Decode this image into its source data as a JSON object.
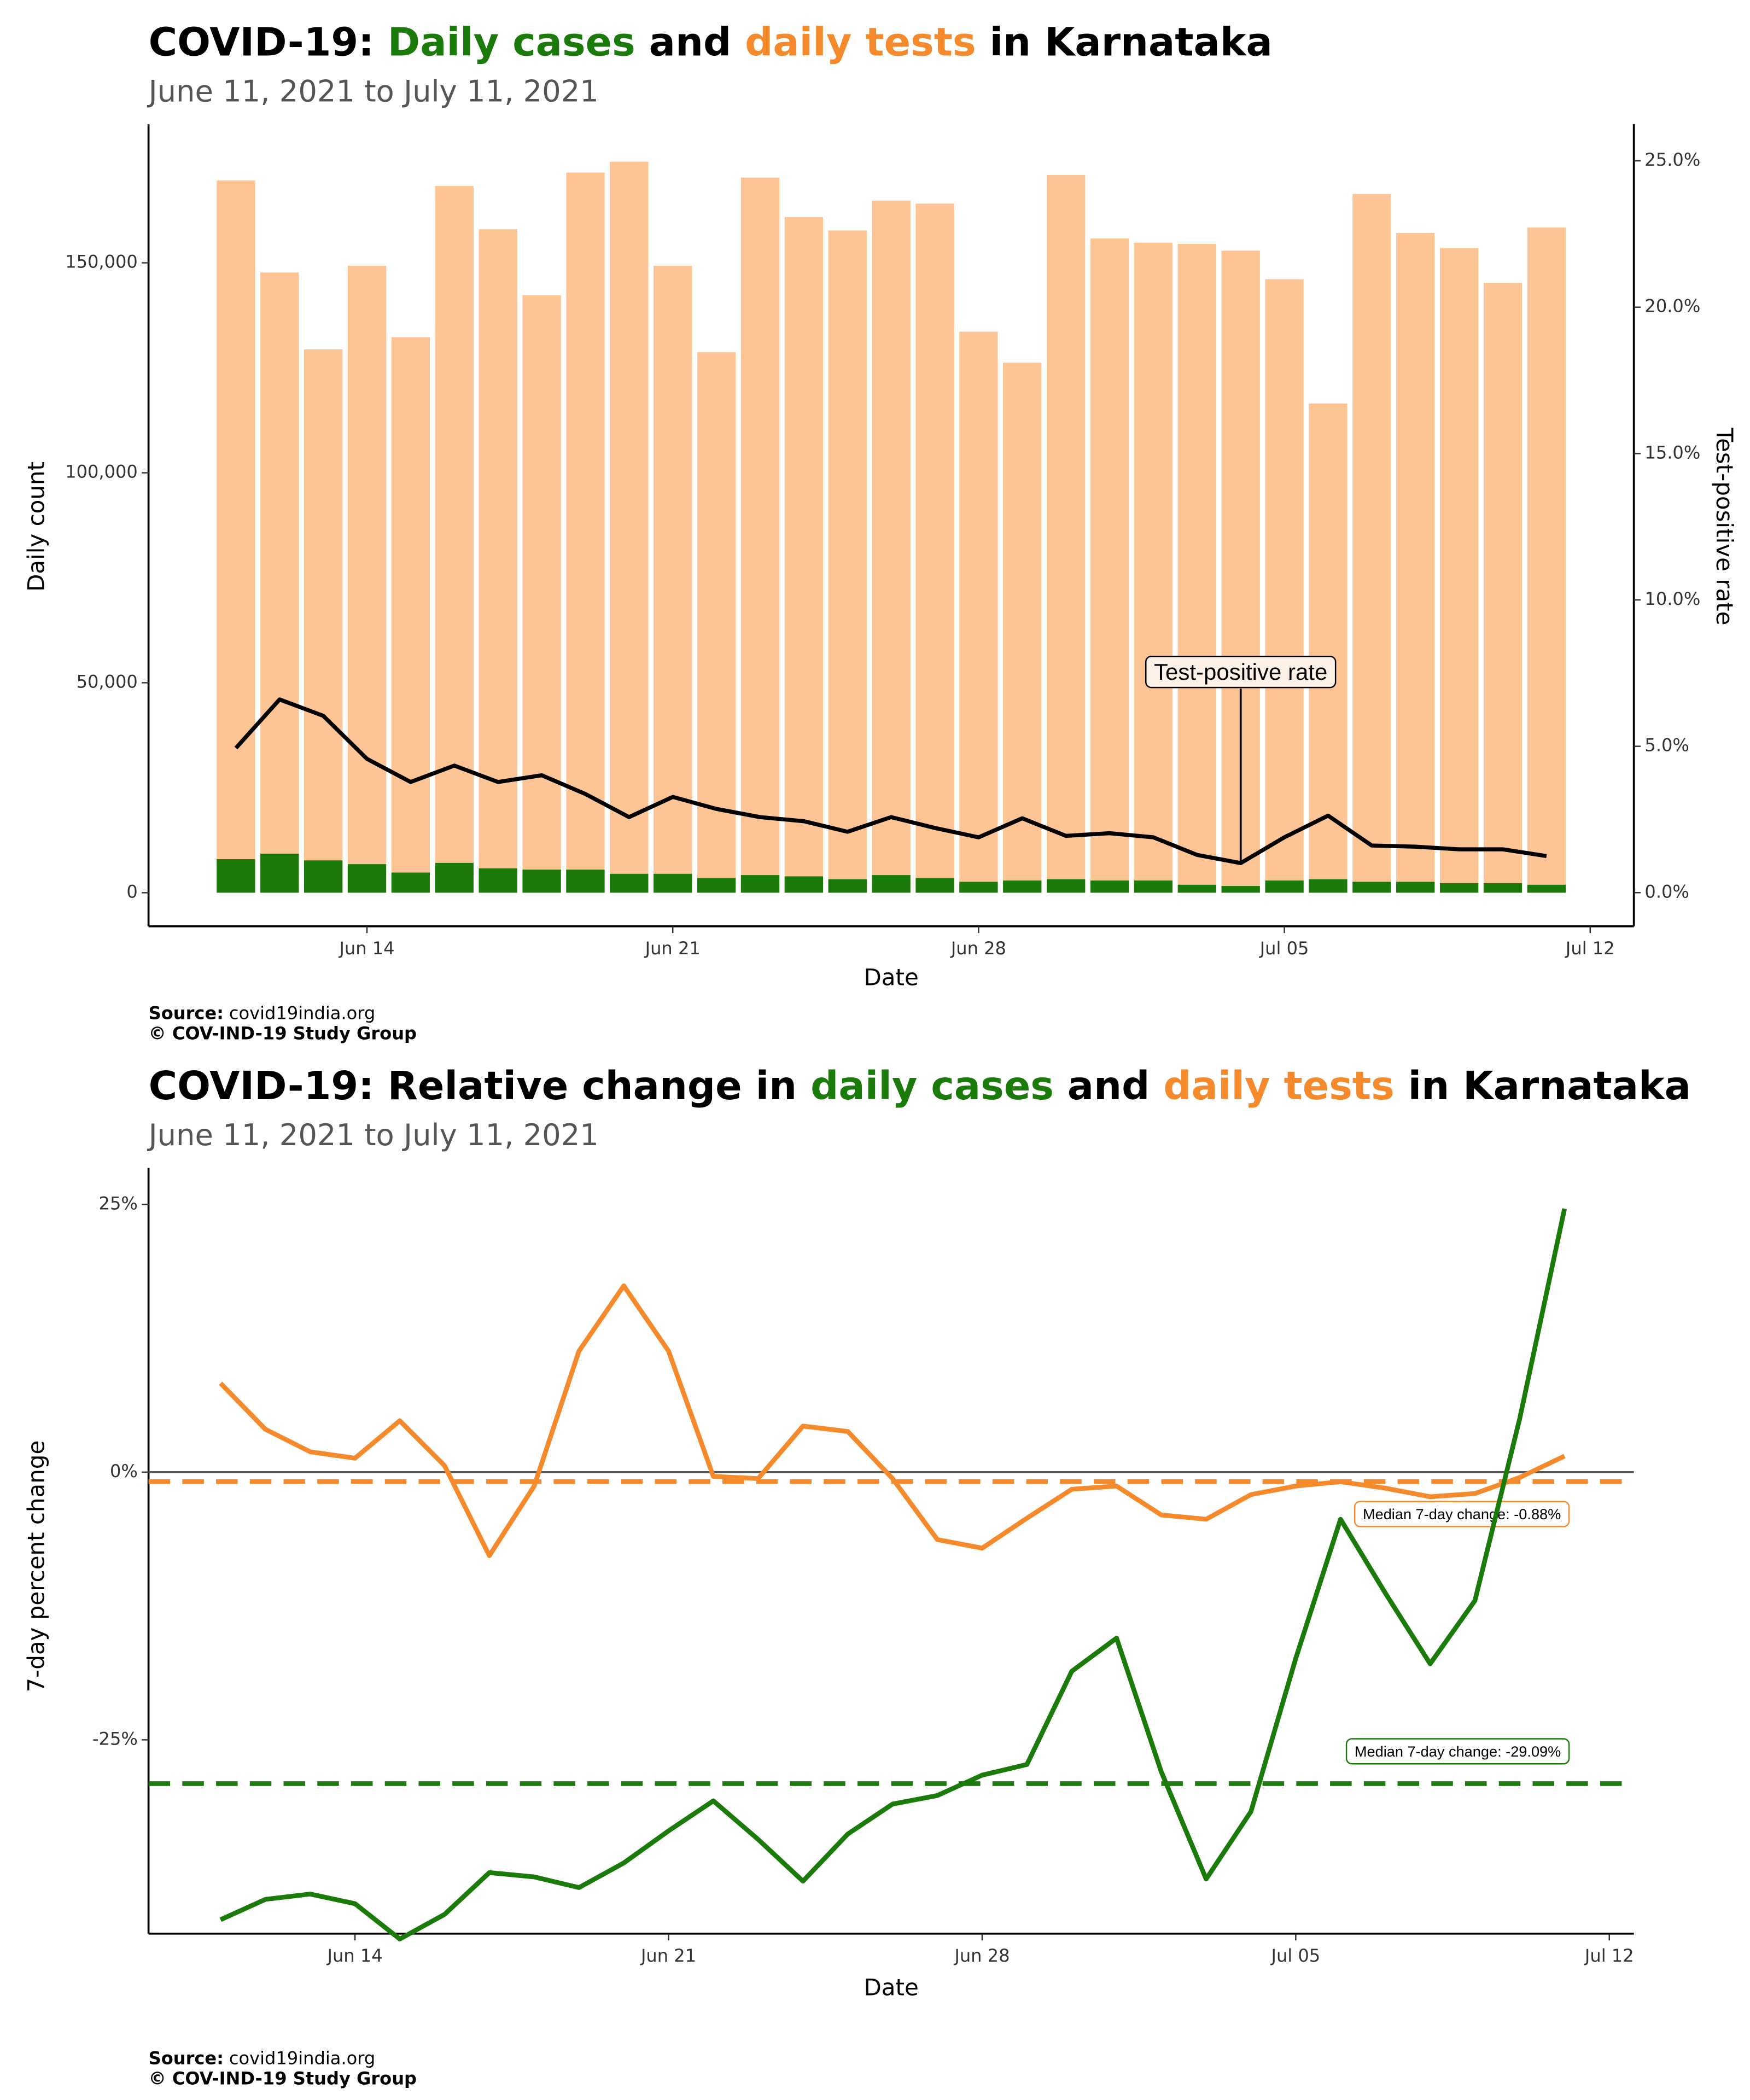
{
  "chart_data": [
    {
      "type": "bar",
      "title": [
        "COVID-19: ",
        "Daily cases",
        " and ",
        "daily tests",
        " in Karnataka"
      ],
      "title_colors": [
        "#000000",
        "#1a7a0a",
        "#000000",
        "#f58a2c",
        "#000000"
      ],
      "subtitle": "June 11, 2021 to July 11, 2021",
      "x_label": "Date",
      "y_label": "Daily count",
      "y2_label": "Test-positive rate",
      "x": [
        "Jun 11",
        "Jun 12",
        "Jun 13",
        "Jun 14",
        "Jun 15",
        "Jun 16",
        "Jun 17",
        "Jun 18",
        "Jun 19",
        "Jun 20",
        "Jun 21",
        "Jun 22",
        "Jun 23",
        "Jun 24",
        "Jun 25",
        "Jun 26",
        "Jun 27",
        "Jun 28",
        "Jun 29",
        "Jun 30",
        "Jul 01",
        "Jul 02",
        "Jul 03",
        "Jul 04",
        "Jul 05",
        "Jul 06",
        "Jul 07",
        "Jul 08",
        "Jul 09",
        "Jul 10",
        "Jul 11"
      ],
      "xlim": [
        "Jun 09",
        "Jul 13"
      ],
      "xticks": [
        "Jun 14",
        "Jun 21",
        "Jun 28",
        "Jul 05",
        "Jul 12"
      ],
      "ylim": [
        -8000,
        183000
      ],
      "yticks": [
        0,
        {
          "value": 50000,
          "label": "50,000"
        },
        {
          "value": 100000,
          "label": "100,000"
        },
        {
          "value": 150000,
          "label": "150,000"
        }
      ],
      "y2lim": [
        -1.15,
        26.25
      ],
      "y2ticks": [
        {
          "value": 0,
          "label": "0.0%"
        },
        {
          "value": 5,
          "label": "5.0%"
        },
        {
          "value": 10,
          "label": "10.0%"
        },
        {
          "value": 15,
          "label": "15.0%"
        },
        {
          "value": 20,
          "label": "20.0%"
        },
        {
          "value": 25,
          "label": "25.0%"
        }
      ],
      "series": [
        {
          "color": "#fdc496",
          "values": [
            169600,
            147700,
            129400,
            149300,
            132300,
            168300,
            158000,
            142300,
            171500,
            174100,
            149300,
            128700,
            170300,
            160900,
            157700,
            164800,
            164100,
            133600,
            126200,
            170900,
            155800,
            154800,
            154500,
            152900,
            146100,
            116500,
            166400,
            157100,
            153500,
            145200,
            158400
          ]
        },
        {
          "color": "#1a7a0a",
          "values": [
            8000,
            9300,
            7700,
            6800,
            4800,
            7100,
            5800,
            5500,
            5500,
            4500,
            4500,
            3500,
            4200,
            3900,
            3200,
            4200,
            3500,
            2600,
            2900,
            3200,
            2900,
            2900,
            1900,
            1600,
            2900,
            3200,
            2600,
            2600,
            2300,
            2300,
            1900
          ]
        },
        {
          "type": "line",
          "axis": "y2",
          "color": "#000000",
          "values": [
            4.94,
            6.6,
            6.04,
            4.57,
            3.78,
            4.34,
            3.78,
            4.01,
            3.37,
            2.58,
            3.27,
            2.86,
            2.58,
            2.44,
            2.08,
            2.58,
            2.21,
            1.89,
            2.54,
            1.94,
            2.03,
            1.89,
            1.29,
            1.01,
            1.89,
            2.63,
            1.61,
            1.57,
            1.48,
            1.48,
            1.25
          ]
        }
      ],
      "annotation": "Test-positive rate",
      "source_label": "Source:",
      "source": "covid19india.org",
      "credit": "© COV-IND-19 Study Group"
    },
    {
      "type": "line",
      "title": [
        "COVID-19: Relative change in ",
        "daily cases",
        " and ",
        "daily tests",
        " in Karnataka"
      ],
      "title_colors": [
        "#000000",
        "#1a7a0a",
        "#000000",
        "#f58a2c",
        "#000000"
      ],
      "subtitle": "June 11, 2021 to July 11, 2021",
      "x_label": "Date",
      "y_label": "7-day percent change",
      "x": [
        "Jun 11",
        "Jun 12",
        "Jun 13",
        "Jun 14",
        "Jun 15",
        "Jun 16",
        "Jun 17",
        "Jun 18",
        "Jun 19",
        "Jun 20",
        "Jun 21",
        "Jun 22",
        "Jun 23",
        "Jun 24",
        "Jun 25",
        "Jun 26",
        "Jun 27",
        "Jun 28",
        "Jun 29",
        "Jun 30",
        "Jul 01",
        "Jul 02",
        "Jul 03",
        "Jul 04",
        "Jul 05",
        "Jul 06",
        "Jul 07",
        "Jul 08",
        "Jul 09",
        "Jul 10",
        "Jul 11"
      ],
      "xlim": [
        "Jun 09",
        "Jul 13"
      ],
      "xticks": [
        "Jun 14",
        "Jun 21",
        "Jun 28",
        "Jul 05",
        "Jul 12"
      ],
      "ylim": [
        -43.1,
        28.4
      ],
      "yticks": [
        {
          "value": -25,
          "label": "-25%"
        },
        {
          "value": 0,
          "label": "0%"
        },
        {
          "value": 25,
          "label": "25%"
        }
      ],
      "reference_line": 0,
      "series": [
        {
          "color": "#f58a2c",
          "values": [
            8.3,
            4.0,
            1.9,
            1.3,
            4.8,
            0.6,
            -7.8,
            -1.3,
            11.3,
            17.4,
            11.3,
            -0.4,
            -0.6,
            4.3,
            3.8,
            -0.6,
            -6.3,
            -7.1,
            -4.3,
            -1.6,
            -1.3,
            -4.0,
            -4.4,
            -2.1,
            -1.3,
            -0.9,
            -1.5,
            -2.3,
            -2.0,
            -0.5,
            1.5
          ],
          "median": -0.88,
          "median_label": "Median 7-day change: -0.88%"
        },
        {
          "color": "#1a7a0a",
          "values": [
            -41.8,
            -39.9,
            -39.4,
            -40.3,
            -43.6,
            -41.3,
            -37.4,
            -37.8,
            -38.8,
            -36.5,
            -33.5,
            -30.7,
            -34.3,
            -38.2,
            -33.8,
            -31.0,
            -30.2,
            -28.3,
            -27.3,
            -18.6,
            -15.5,
            -28.0,
            -38.0,
            -31.7,
            -17.4,
            -4.4,
            -11.3,
            -17.9,
            -12.0,
            5.0,
            24.6
          ],
          "median": -29.09,
          "median_label": "Median 7-day change: -29.09%"
        }
      ],
      "source_label": "Source:",
      "source": "covid19india.org",
      "credit": "© COV-IND-19 Study Group"
    }
  ]
}
